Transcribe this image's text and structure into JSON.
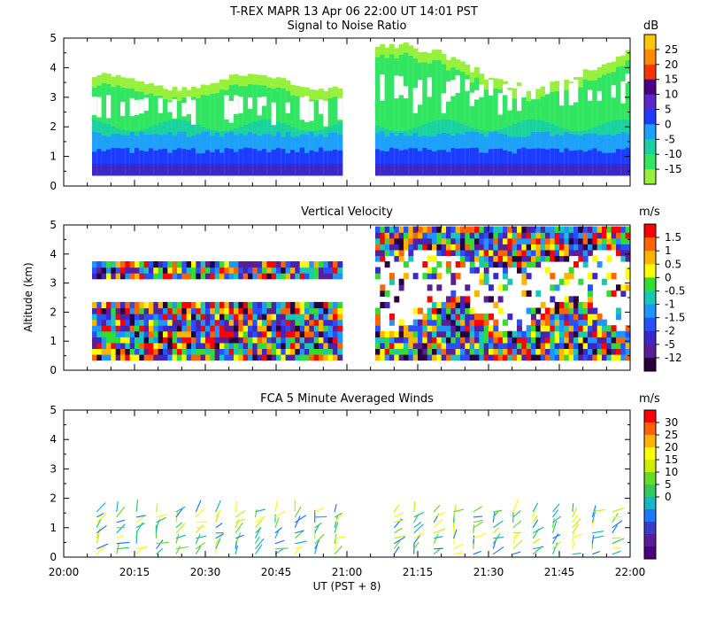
{
  "chart_data": [
    {
      "type": "heatmap",
      "title_line1": "T-REX   MAPR 13 Apr 06   22:00 UT   14:01   PST",
      "title": "Signal to Noise Ratio",
      "ylabel": "",
      "ylim": [
        0,
        5
      ],
      "y_ticks": [
        "0",
        "1",
        "2",
        "3",
        "4",
        "5"
      ],
      "colorbar_unit": "dB",
      "colorbar_labels": [
        "25",
        "20",
        "15",
        "10",
        "5",
        "0",
        "-5",
        "-10",
        "-15"
      ],
      "colorbar_colors": [
        "#ffc800",
        "#ff8c00",
        "#ff3200",
        "#4b0082",
        "#5a28c8",
        "#1e3cff",
        "#1ea0ff",
        "#19d2a0",
        "#32e664",
        "#96f03c"
      ]
    },
    {
      "type": "heatmap",
      "title": "Vertical Velocity",
      "ylabel": "Altitude (km)",
      "ylim": [
        0,
        5
      ],
      "y_ticks": [
        "0",
        "1",
        "2",
        "3",
        "4",
        "5"
      ],
      "colorbar_unit": "m/s",
      "colorbar_labels": [
        "1.5",
        "1",
        "0.5",
        "0",
        "-0.5",
        "-1",
        "-1.5",
        "-2",
        "-5",
        "-12"
      ],
      "colorbar_colors": [
        "#ff0000",
        "#ff6400",
        "#ffb400",
        "#ffff00",
        "#32dc32",
        "#19c8b4",
        "#1e96ff",
        "#2850ff",
        "#3c28c8",
        "#5a1e96",
        "#28003c"
      ]
    },
    {
      "type": "scatter",
      "title": "FCA 5 Minute Averaged Winds",
      "ylabel": "",
      "xlabel": "UT  (PST + 8)",
      "ylim": [
        0,
        5
      ],
      "y_ticks": [
        "0",
        "1",
        "2",
        "3",
        "4",
        "5"
      ],
      "x_ticks": [
        "20:00",
        "20:15",
        "20:30",
        "20:45",
        "21:00",
        "21:15",
        "21:30",
        "21:45",
        "22:00"
      ],
      "colorbar_unit": "m/s",
      "colorbar_labels": [
        "30",
        "25",
        "20",
        "15",
        "10",
        "5",
        "0"
      ],
      "colorbar_colors": [
        "#ff0000",
        "#ff6400",
        "#ffb400",
        "#ffff00",
        "#c8f000",
        "#64dc28",
        "#32c864",
        "#19b4c8",
        "#1e78ff",
        "#3c3cc8",
        "#5a1e96",
        "#4b0082"
      ]
    }
  ]
}
